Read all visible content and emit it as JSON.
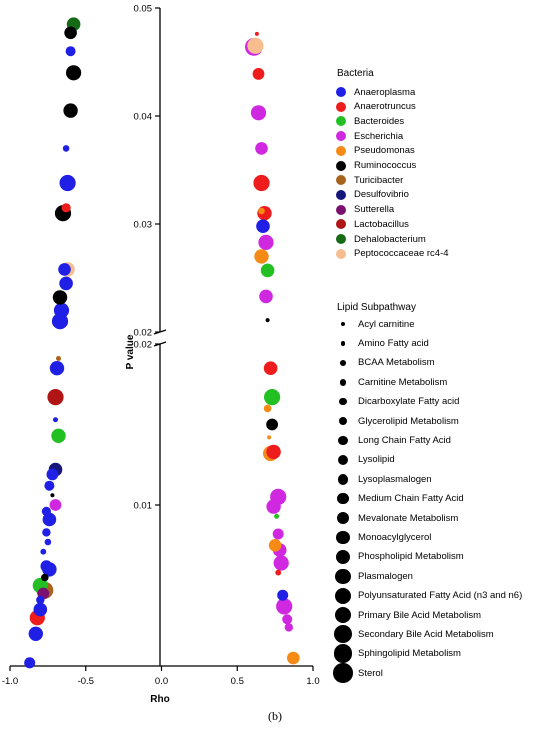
{
  "caption": "(b)",
  "chart_data": {
    "type": "scatter",
    "xlabel": "Rho",
    "ylabel": "P value",
    "xlim": [
      -1.0,
      1.0
    ],
    "ylim_lower": [
      0,
      0.02
    ],
    "ylim_upper": [
      0.02,
      0.05
    ],
    "x_ticks": [
      "-1.0",
      "-0.5",
      "0.0",
      "0.5",
      "1.0"
    ],
    "y_ticks_lower": [
      "0.01",
      "0.02"
    ],
    "y_ticks_upper": [
      "0.02",
      "0.03",
      "0.04",
      "0.05"
    ],
    "axis_break_at": 0.02,
    "legend_placement": "right",
    "bacteria_legend": {
      "title": "Bacteria",
      "items": [
        {
          "name": "Anaeroplasma",
          "color": "#1f1fe6"
        },
        {
          "name": "Anaerotruncus",
          "color": "#ee1c1c"
        },
        {
          "name": "Bacteroides",
          "color": "#22c022"
        },
        {
          "name": "Escherichia",
          "color": "#d027e0"
        },
        {
          "name": "Pseudomonas",
          "color": "#f58a14"
        },
        {
          "name": "Ruminococcus",
          "color": "#000000"
        },
        {
          "name": "Turicibacter",
          "color": "#a8641e"
        },
        {
          "name": "Desulfovibrio",
          "color": "#15157a"
        },
        {
          "name": "Sutterella",
          "color": "#7a1070"
        },
        {
          "name": "Lactobacillus",
          "color": "#b01414"
        },
        {
          "name": "Dehalobacterium",
          "color": "#156b15"
        },
        {
          "name": "Peptococcaceae rc4-4",
          "color": "#f7bd8e"
        }
      ]
    },
    "size_legend": {
      "title": "Lipid Subpathway",
      "items": [
        {
          "name": "Acyl carnitine",
          "size_rank": 1
        },
        {
          "name": "Amino Fatty acid",
          "size_rank": 2
        },
        {
          "name": "BCAA Metabolism",
          "size_rank": 3
        },
        {
          "name": "Carnitine Metabolism",
          "size_rank": 4
        },
        {
          "name": "Dicarboxylate Fatty acid",
          "size_rank": 5
        },
        {
          "name": "Glycerolipid Metabolism",
          "size_rank": 6
        },
        {
          "name": "Long Chain Fatty Acid",
          "size_rank": 7
        },
        {
          "name": "Lysolipid",
          "size_rank": 8
        },
        {
          "name": "Lysoplasmalogen",
          "size_rank": 9
        },
        {
          "name": "Medium Chain Fatty Acid",
          "size_rank": 10
        },
        {
          "name": "Mevalonate Metabolism",
          "size_rank": 11
        },
        {
          "name": "Monoacylglycerol",
          "size_rank": 12
        },
        {
          "name": "Phospholipid Metabolism",
          "size_rank": 13
        },
        {
          "name": "Plasmalogen",
          "size_rank": 14
        },
        {
          "name": "Polyunsaturated Fatty Acid (n3 and n6)",
          "size_rank": 15
        },
        {
          "name": "Primary Bile Acid Metabolism",
          "size_rank": 16
        },
        {
          "name": "Secondary Bile Acid Metabolism",
          "size_rank": 17
        },
        {
          "name": "Sphingolipid Metabolism",
          "size_rank": 18
        },
        {
          "name": "Sterol",
          "size_rank": 19
        }
      ]
    },
    "points": [
      {
        "rho": -0.58,
        "p": 0.0485,
        "bacteria": "Dehalobacterium",
        "size_rank": 12
      },
      {
        "rho": -0.6,
        "p": 0.0477,
        "bacteria": "Ruminococcus",
        "size_rank": 11
      },
      {
        "rho": -0.6,
        "p": 0.046,
        "bacteria": "Anaeroplasma",
        "size_rank": 8
      },
      {
        "rho": -0.58,
        "p": 0.044,
        "bacteria": "Ruminococcus",
        "size_rank": 14
      },
      {
        "rho": -0.6,
        "p": 0.0405,
        "bacteria": "Ruminococcus",
        "size_rank": 13
      },
      {
        "rho": -0.63,
        "p": 0.037,
        "bacteria": "Anaeroplasma",
        "size_rank": 4
      },
      {
        "rho": -0.62,
        "p": 0.0338,
        "bacteria": "Anaeroplasma",
        "size_rank": 15
      },
      {
        "rho": -0.63,
        "p": 0.0315,
        "bacteria": "Anaerotruncus",
        "size_rank": 7
      },
      {
        "rho": -0.65,
        "p": 0.031,
        "bacteria": "Ruminococcus",
        "size_rank": 15
      },
      {
        "rho": -0.64,
        "p": 0.0258,
        "bacteria": "Anaeroplasma",
        "size_rank": 11
      },
      {
        "rho": -0.62,
        "p": 0.0258,
        "bacteria": "Peptococcaceae rc4-4",
        "size_rank": 13
      },
      {
        "rho": -0.63,
        "p": 0.0245,
        "bacteria": "Anaeroplasma",
        "size_rank": 12
      },
      {
        "rho": -0.67,
        "p": 0.0232,
        "bacteria": "Ruminococcus",
        "size_rank": 13
      },
      {
        "rho": -0.66,
        "p": 0.022,
        "bacteria": "Anaeroplasma",
        "size_rank": 14
      },
      {
        "rho": -0.67,
        "p": 0.021,
        "bacteria": "Anaeroplasma",
        "size_rank": 15
      },
      {
        "rho": -0.68,
        "p": 0.0191,
        "bacteria": "Turicibacter",
        "size_rank": 2
      },
      {
        "rho": -0.69,
        "p": 0.0185,
        "bacteria": "Anaeroplasma",
        "size_rank": 13
      },
      {
        "rho": -0.7,
        "p": 0.0167,
        "bacteria": "Lactobacillus",
        "size_rank": 15
      },
      {
        "rho": -0.7,
        "p": 0.0153,
        "bacteria": "Anaeroplasma",
        "size_rank": 2
      },
      {
        "rho": -0.68,
        "p": 0.0143,
        "bacteria": "Bacteroides",
        "size_rank": 13
      },
      {
        "rho": -0.7,
        "p": 0.0122,
        "bacteria": "Desulfovibrio",
        "size_rank": 12
      },
      {
        "rho": -0.72,
        "p": 0.0119,
        "bacteria": "Anaeroplasma",
        "size_rank": 10
      },
      {
        "rho": -0.74,
        "p": 0.0112,
        "bacteria": "Anaeroplasma",
        "size_rank": 8
      },
      {
        "rho": -0.72,
        "p": 0.0106,
        "bacteria": "Ruminococcus",
        "size_rank": 1
      },
      {
        "rho": -0.7,
        "p": 0.01,
        "bacteria": "Escherichia",
        "size_rank": 10
      },
      {
        "rho": -0.76,
        "p": 0.0096,
        "bacteria": "Anaeroplasma",
        "size_rank": 7
      },
      {
        "rho": -0.74,
        "p": 0.0091,
        "bacteria": "Anaeroplasma",
        "size_rank": 12
      },
      {
        "rho": -0.76,
        "p": 0.0083,
        "bacteria": "Anaeroplasma",
        "size_rank": 6
      },
      {
        "rho": -0.75,
        "p": 0.0077,
        "bacteria": "Anaeroplasma",
        "size_rank": 4
      },
      {
        "rho": -0.78,
        "p": 0.0071,
        "bacteria": "Anaeroplasma",
        "size_rank": 3
      },
      {
        "rho": -0.76,
        "p": 0.0062,
        "bacteria": "Anaeroplasma",
        "size_rank": 10
      },
      {
        "rho": -0.74,
        "p": 0.006,
        "bacteria": "Anaeroplasma",
        "size_rank": 13
      },
      {
        "rho": -0.77,
        "p": 0.0055,
        "bacteria": "Ruminococcus",
        "size_rank": 5
      },
      {
        "rho": -0.8,
        "p": 0.005,
        "bacteria": "Bacteroides",
        "size_rank": 14
      },
      {
        "rho": -0.77,
        "p": 0.0047,
        "bacteria": "Turicibacter",
        "size_rank": 16
      },
      {
        "rho": -0.78,
        "p": 0.0045,
        "bacteria": "Sutterella",
        "size_rank": 10
      },
      {
        "rho": -0.8,
        "p": 0.0041,
        "bacteria": "Anaeroplasma",
        "size_rank": 6
      },
      {
        "rho": -0.8,
        "p": 0.0035,
        "bacteria": "Anaeroplasma",
        "size_rank": 12
      },
      {
        "rho": -0.82,
        "p": 0.003,
        "bacteria": "Anaerotruncus",
        "size_rank": 14
      },
      {
        "rho": -0.83,
        "p": 0.002,
        "bacteria": "Anaeroplasma",
        "size_rank": 13
      },
      {
        "rho": -0.87,
        "p": 0.0002,
        "bacteria": "Anaeroplasma",
        "size_rank": 9
      },
      {
        "rho": 0.63,
        "p": 0.0476,
        "bacteria": "Anaerotruncus",
        "size_rank": 1
      },
      {
        "rho": 0.61,
        "p": 0.0464,
        "bacteria": "Escherichia",
        "size_rank": 17
      },
      {
        "rho": 0.62,
        "p": 0.0465,
        "bacteria": "Peptococcaceae rc4-4",
        "size_rank": 15
      },
      {
        "rho": 0.64,
        "p": 0.0439,
        "bacteria": "Anaerotruncus",
        "size_rank": 10
      },
      {
        "rho": 0.64,
        "p": 0.0403,
        "bacteria": "Escherichia",
        "size_rank": 14
      },
      {
        "rho": 0.66,
        "p": 0.037,
        "bacteria": "Escherichia",
        "size_rank": 11
      },
      {
        "rho": 0.66,
        "p": 0.0338,
        "bacteria": "Anaerotruncus",
        "size_rank": 15
      },
      {
        "rho": 0.66,
        "p": 0.0312,
        "bacteria": "Pseudomonas",
        "size_rank": 4
      },
      {
        "rho": 0.68,
        "p": 0.031,
        "bacteria": "Anaerotruncus",
        "size_rank": 13
      },
      {
        "rho": 0.67,
        "p": 0.0298,
        "bacteria": "Anaeroplasma",
        "size_rank": 12
      },
      {
        "rho": 0.69,
        "p": 0.0283,
        "bacteria": "Escherichia",
        "size_rank": 14
      },
      {
        "rho": 0.66,
        "p": 0.027,
        "bacteria": "Pseudomonas",
        "size_rank": 13
      },
      {
        "rho": 0.7,
        "p": 0.0257,
        "bacteria": "Bacteroides",
        "size_rank": 12
      },
      {
        "rho": 0.69,
        "p": 0.0233,
        "bacteria": "Escherichia",
        "size_rank": 12
      },
      {
        "rho": 0.7,
        "p": 0.0211,
        "bacteria": "Ruminococcus",
        "size_rank": 1
      },
      {
        "rho": 0.72,
        "p": 0.0185,
        "bacteria": "Anaerotruncus",
        "size_rank": 12
      },
      {
        "rho": 0.73,
        "p": 0.0167,
        "bacteria": "Bacteroides",
        "size_rank": 15
      },
      {
        "rho": 0.7,
        "p": 0.016,
        "bacteria": "Pseudomonas",
        "size_rank": 5
      },
      {
        "rho": 0.73,
        "p": 0.015,
        "bacteria": "Ruminococcus",
        "size_rank": 10
      },
      {
        "rho": 0.71,
        "p": 0.0142,
        "bacteria": "Pseudomonas",
        "size_rank": 1
      },
      {
        "rho": 0.72,
        "p": 0.0132,
        "bacteria": "Pseudomonas",
        "size_rank": 14
      },
      {
        "rho": 0.74,
        "p": 0.0133,
        "bacteria": "Anaerotruncus",
        "size_rank": 13
      },
      {
        "rho": 0.77,
        "p": 0.0105,
        "bacteria": "Escherichia",
        "size_rank": 15
      },
      {
        "rho": 0.74,
        "p": 0.0099,
        "bacteria": "Escherichia",
        "size_rank": 13
      },
      {
        "rho": 0.76,
        "p": 0.0093,
        "bacteria": "Bacteroides",
        "size_rank": 2
      },
      {
        "rho": 0.77,
        "p": 0.0082,
        "bacteria": "Escherichia",
        "size_rank": 9
      },
      {
        "rho": 0.75,
        "p": 0.0075,
        "bacteria": "Pseudomonas",
        "size_rank": 11
      },
      {
        "rho": 0.78,
        "p": 0.0072,
        "bacteria": "Escherichia",
        "size_rank": 12
      },
      {
        "rho": 0.79,
        "p": 0.0064,
        "bacteria": "Escherichia",
        "size_rank": 14
      },
      {
        "rho": 0.77,
        "p": 0.0058,
        "bacteria": "Anaerotruncus",
        "size_rank": 3
      },
      {
        "rho": 0.8,
        "p": 0.0044,
        "bacteria": "Anaeroplasma",
        "size_rank": 9
      },
      {
        "rho": 0.81,
        "p": 0.0037,
        "bacteria": "Escherichia",
        "size_rank": 15
      },
      {
        "rho": 0.83,
        "p": 0.0029,
        "bacteria": "Escherichia",
        "size_rank": 8
      },
      {
        "rho": 0.84,
        "p": 0.0024,
        "bacteria": "Escherichia",
        "size_rank": 6
      },
      {
        "rho": 0.87,
        "p": 0.0005,
        "bacteria": "Pseudomonas",
        "size_rank": 11
      }
    ]
  }
}
